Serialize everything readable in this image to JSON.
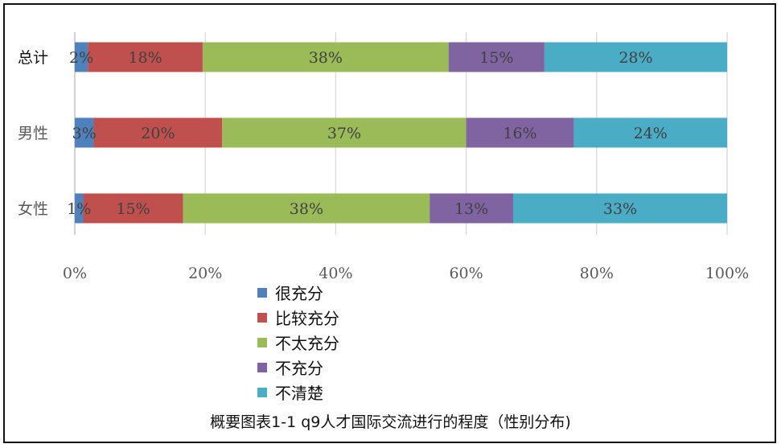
{
  "chart_data": {
    "type": "bar",
    "orientation": "horizontal",
    "stacked": true,
    "categories": [
      "总计",
      "男性",
      "女性"
    ],
    "series": [
      {
        "name": "很充分",
        "color": "#4f81bd",
        "values": [
          2,
          3,
          1
        ],
        "labels": [
          "2%",
          "3%",
          "1%"
        ]
      },
      {
        "name": "比较充分",
        "color": "#c0504d",
        "values": [
          18,
          20,
          15
        ],
        "labels": [
          "18%",
          "20%",
          "15%"
        ]
      },
      {
        "name": "不太充分",
        "color": "#9bbb59",
        "values": [
          38,
          37,
          38
        ],
        "labels": [
          "38%",
          "37%",
          "38%"
        ]
      },
      {
        "name": "不充分",
        "color": "#8064a2",
        "values": [
          15,
          16,
          13
        ],
        "labels": [
          "15%",
          "16%",
          "13%"
        ]
      },
      {
        "name": "不清楚",
        "color": "#4bacc6",
        "values": [
          28,
          24,
          33
        ],
        "labels": [
          "28%",
          "24%",
          "33%"
        ]
      }
    ],
    "bar_extents": [
      [
        0,
        2,
        19.6,
        57.3,
        72,
        100
      ],
      [
        0,
        2.9,
        22.6,
        60,
        76.5,
        100
      ],
      [
        0,
        1.3,
        16.6,
        54.4,
        67.2,
        100
      ]
    ],
    "xlim": [
      0,
      100
    ],
    "xticks": [
      "0%",
      "20%",
      "40%",
      "60%",
      "80%",
      "100%"
    ],
    "grid": true,
    "legend_position": "bottom",
    "title": "概要图表1-1  q9人才国际交流进行的程度（性别分布)",
    "xlabel": "",
    "ylabel": ""
  }
}
